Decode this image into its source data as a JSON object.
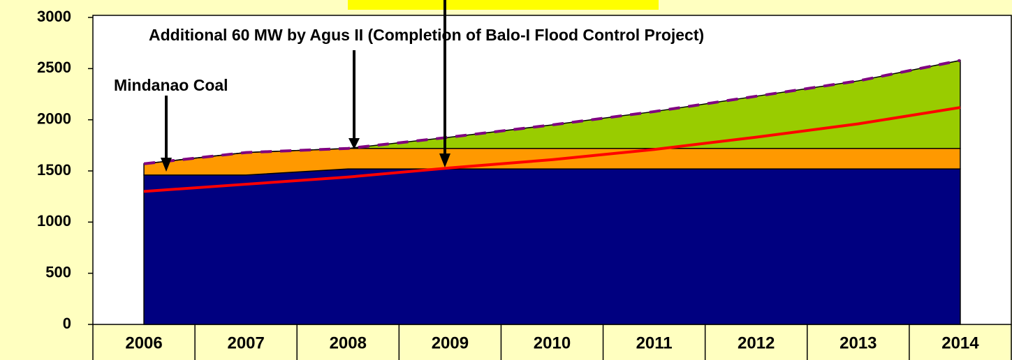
{
  "chart_data": {
    "type": "area",
    "categories": [
      "2006",
      "2007",
      "2008",
      "2009",
      "2010",
      "2011",
      "2012",
      "2013",
      "2014"
    ],
    "ylim": [
      0,
      3000
    ],
    "yticks": [
      0,
      500,
      1000,
      1500,
      2000,
      2500,
      3000
    ],
    "series": [
      {
        "type": "area",
        "color": "#000080",
        "values": [
          1460,
          1460,
          1520,
          1520,
          1520,
          1520,
          1520,
          1520,
          1520
        ]
      },
      {
        "type": "area",
        "color": "#ff9900",
        "values": [
          110,
          220,
          200,
          200,
          200,
          200,
          200,
          200,
          200
        ]
      },
      {
        "type": "area",
        "color": "#99cc00",
        "values": [
          0,
          0,
          0,
          110,
          230,
          360,
          510,
          660,
          860
        ]
      },
      {
        "type": "line",
        "color": "#ff0000",
        "values": [
          1300,
          1370,
          1440,
          1530,
          1610,
          1710,
          1830,
          1960,
          2120
        ]
      },
      {
        "type": "line",
        "color": "#800080",
        "dashed": true,
        "values": [
          1570,
          1680,
          1720,
          1830,
          1950,
          2080,
          2230,
          2380,
          2580
        ]
      }
    ],
    "annotations": [
      "Additional 60 MW by Agus II (Completion of Balo-I Flood Control Project)",
      "Mindanao Coal"
    ]
  }
}
